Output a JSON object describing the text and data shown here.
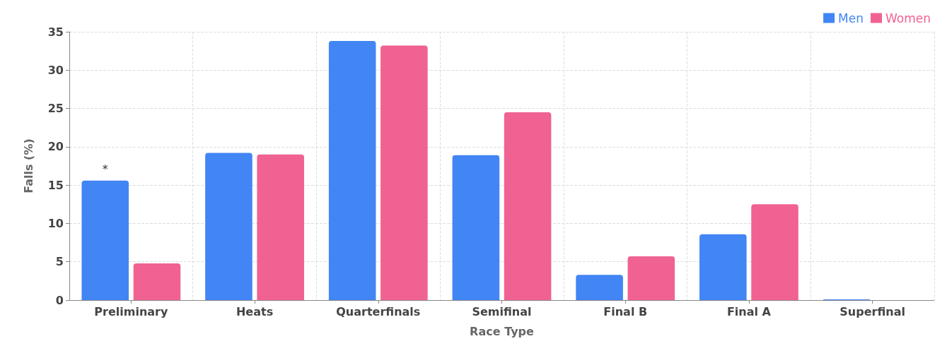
{
  "chart_data": {
    "type": "bar",
    "xlabel": "Race Type",
    "ylabel": "Falls (%)",
    "categories": [
      "Preliminary",
      "Heats",
      "Quarterfinals",
      "Semifinal",
      "Final B",
      "Final A",
      "Superfinal"
    ],
    "series": [
      {
        "name": "Men",
        "color": "#4285f4",
        "values": [
          15.6,
          19.2,
          33.8,
          18.9,
          3.3,
          8.6,
          0.1
        ]
      },
      {
        "name": "Women",
        "color": "#f06292",
        "values": [
          4.8,
          19.0,
          33.2,
          24.5,
          5.7,
          12.5,
          0
        ]
      }
    ],
    "ylim": [
      0,
      35
    ],
    "yticks": [
      0,
      5,
      10,
      15,
      20,
      25,
      30,
      35
    ],
    "grid": true,
    "legend": "top right",
    "annotations": [
      {
        "text": "*",
        "x": "Preliminary",
        "y": 15.6
      }
    ]
  }
}
